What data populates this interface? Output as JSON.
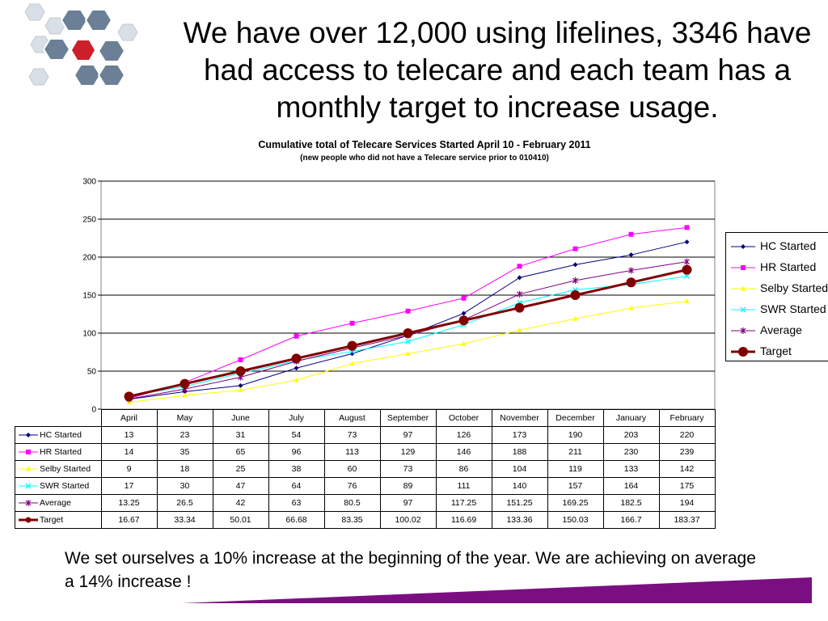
{
  "slide": {
    "title": "We have over 12,000 using lifelines, 3346 have had access to telecare and each team has a monthly target to increase usage.",
    "footer": "We set ourselves a 10% increase at the beginning of the year. We are achieving on average a 14% increase !"
  },
  "colors": {
    "accent": "#7b0f82",
    "logo_red": "#cc1f2a"
  },
  "chart_data": {
    "type": "line",
    "title": "Cumulative total of Telecare Services Started April 10 - February 2011",
    "subtitle": "(new people who did not have a Telecare service prior to 010410)",
    "categories": [
      "April",
      "May",
      "June",
      "July",
      "August",
      "September",
      "October",
      "November",
      "December",
      "January",
      "February"
    ],
    "ylim": [
      0,
      300
    ],
    "yticks": [
      "0",
      "50",
      "100",
      "150",
      "200",
      "250",
      "300"
    ],
    "grid": true,
    "legend_position": "right",
    "series": [
      {
        "name": "HC Started",
        "color": "#000080",
        "marker": "diamond",
        "values": [
          13,
          23,
          31,
          54,
          73,
          97,
          126,
          173,
          190,
          203,
          220
        ],
        "labels": [
          "13",
          "23",
          "31",
          "54",
          "73",
          "97",
          "126",
          "173",
          "190",
          "203",
          "220"
        ]
      },
      {
        "name": "HR Started",
        "color": "#ff00ff",
        "marker": "square",
        "values": [
          14,
          35,
          65,
          96,
          113,
          129,
          146,
          188,
          211,
          230,
          239
        ],
        "labels": [
          "14",
          "35",
          "65",
          "96",
          "113",
          "129",
          "146",
          "188",
          "211",
          "230",
          "239"
        ]
      },
      {
        "name": "Selby Started",
        "color": "#ffff00",
        "marker": "triangle",
        "values": [
          9,
          18,
          25,
          38,
          60,
          73,
          86,
          104,
          119,
          133,
          142
        ],
        "labels": [
          "9",
          "18",
          "25",
          "38",
          "60",
          "73",
          "86",
          "104",
          "119",
          "133",
          "142"
        ]
      },
      {
        "name": "SWR Started",
        "color": "#00ffff",
        "marker": "x",
        "values": [
          17,
          30,
          47,
          64,
          76,
          89,
          111,
          140,
          157,
          164,
          175
        ],
        "labels": [
          "17",
          "30",
          "47",
          "64",
          "76",
          "89",
          "111",
          "140",
          "157",
          "164",
          "175"
        ]
      },
      {
        "name": "Average",
        "color": "#800080",
        "marker": "star",
        "values": [
          13.25,
          26.5,
          42,
          63,
          80.5,
          97,
          117.25,
          151.25,
          169.25,
          182.5,
          194
        ],
        "labels": [
          "13.25",
          "26.5",
          "42",
          "63",
          "80.5",
          "97",
          "117.25",
          "151.25",
          "169.25",
          "182.5",
          "194"
        ]
      },
      {
        "name": "Target",
        "color": "#800000",
        "marker": "circle",
        "values": [
          16.67,
          33.34,
          50.01,
          66.68,
          83.35,
          100.02,
          116.69,
          133.36,
          150.03,
          166.7,
          183.37
        ],
        "labels": [
          "16.67",
          "33.34",
          "50.01",
          "66.68",
          "83.35",
          "100.02",
          "116.69",
          "133.36",
          "150.03",
          "166.7",
          "183.37"
        ]
      }
    ]
  }
}
